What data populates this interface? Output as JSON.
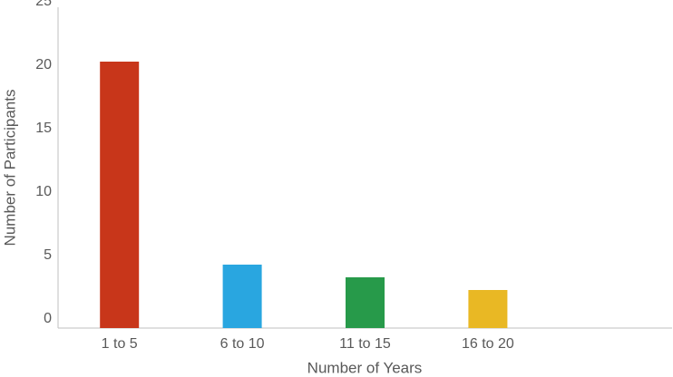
{
  "chart_data": {
    "type": "bar",
    "x_label": "Number of Years",
    "y_label": "Number of Participants",
    "categories": [
      "1 to 5",
      "6 to 10",
      "11 to 15",
      "16 to 20",
      null
    ],
    "values": [
      21,
      5,
      4,
      3,
      null
    ],
    "colors": [
      "#c8361a",
      "#29a6e0",
      "#279a4a",
      "#e9b824",
      null
    ],
    "ylim": [
      0,
      25
    ],
    "yticks": [
      0,
      5,
      10,
      15,
      20,
      25
    ],
    "grid": false
  }
}
